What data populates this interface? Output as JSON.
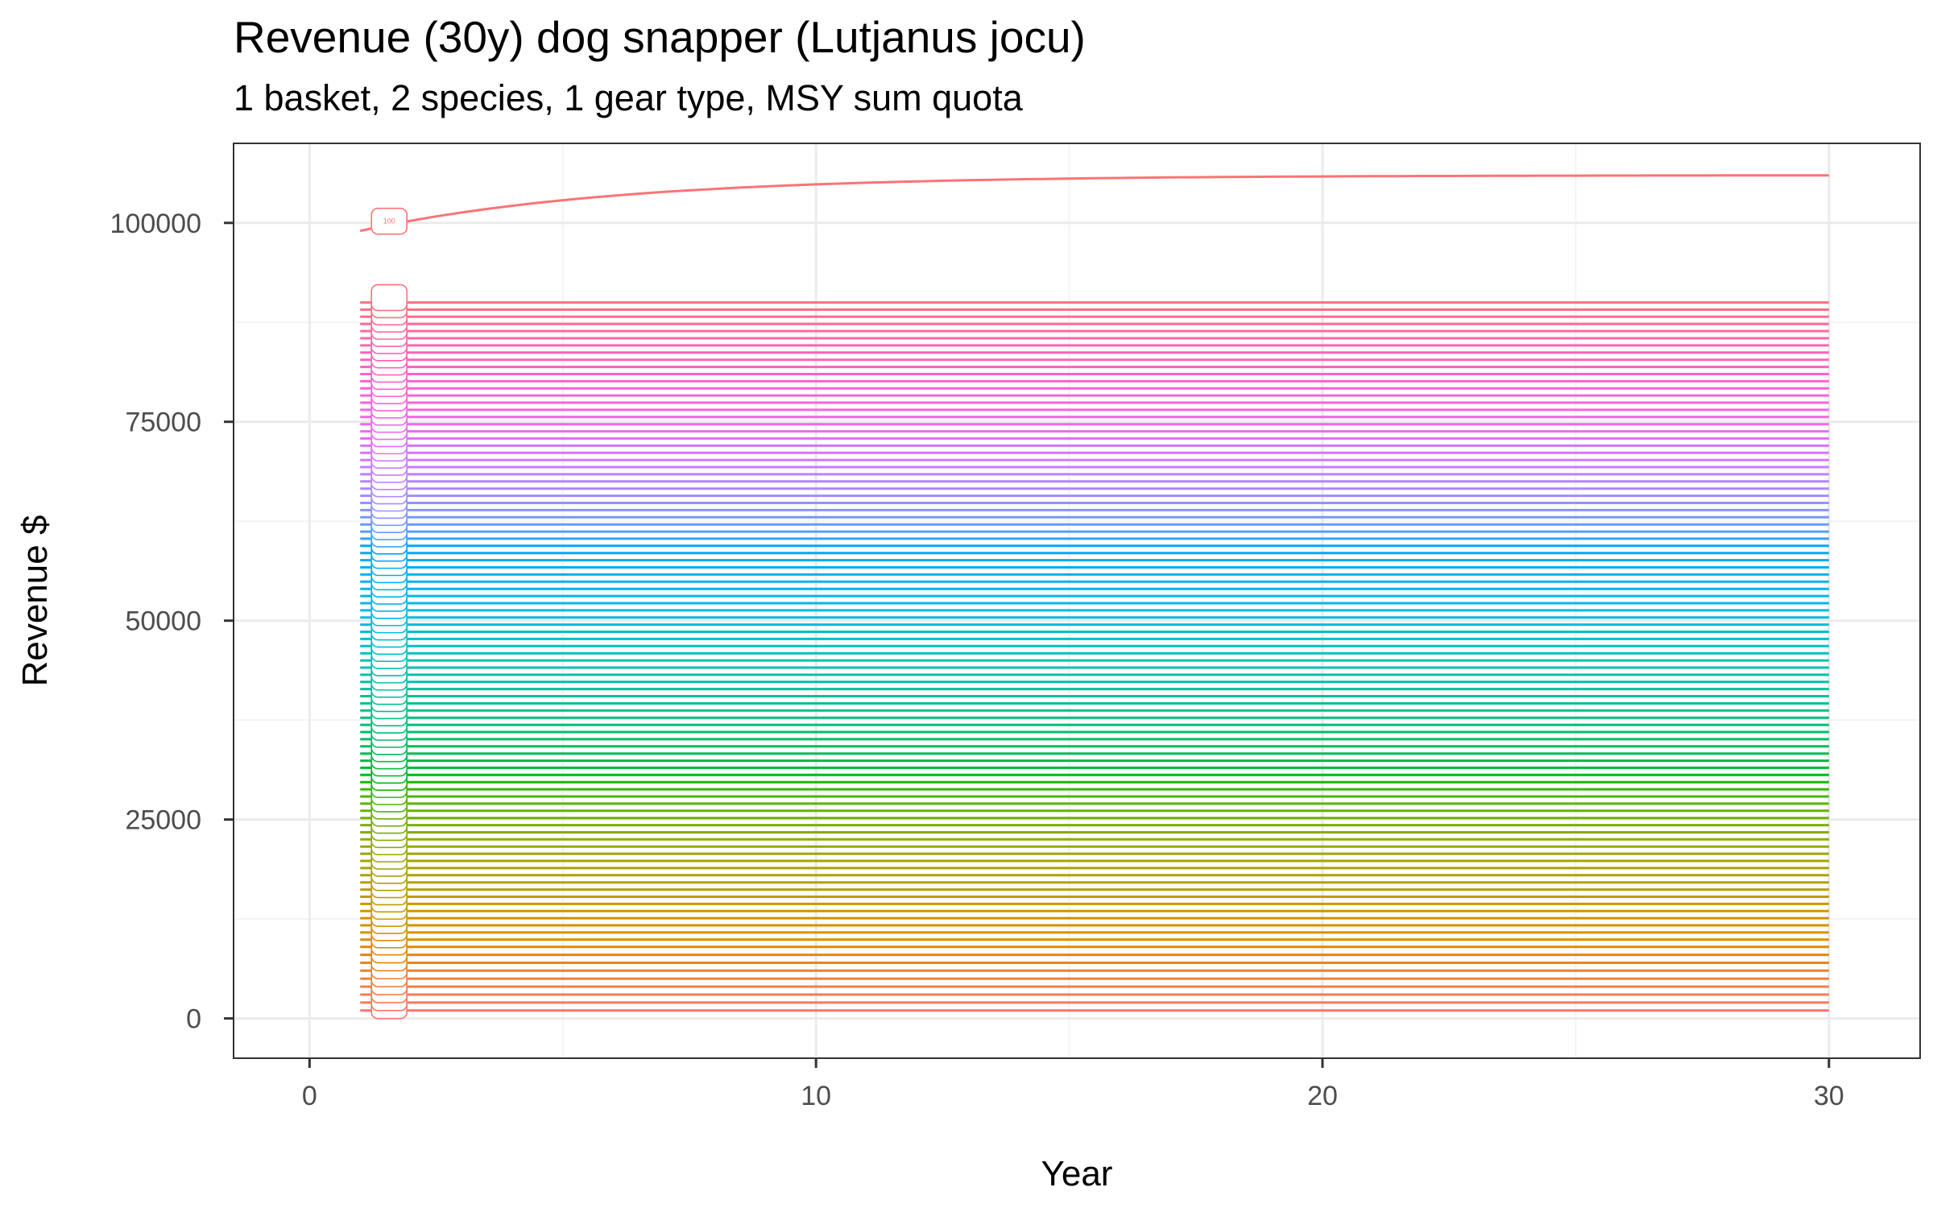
{
  "chart_data": {
    "type": "line",
    "title": "Revenue (30y) dog snapper (Lutjanus jocu)",
    "subtitle": "1 basket, 2 species, 1 gear type, MSY sum quota",
    "xlabel": "Year",
    "ylabel": "Revenue $",
    "xlim": [
      -1.5,
      31.8
    ],
    "ylim": [
      -5000,
      110000
    ],
    "x_ticks": [
      0,
      10,
      20,
      30
    ],
    "y_ticks": [
      0,
      25000,
      50000,
      75000,
      100000
    ],
    "grid": true,
    "legend": "none",
    "series_count": 100,
    "x_start": 1,
    "x_end": 30,
    "start_label": "100",
    "series_rule": "series i = 1..100: value(year) = start_i + growth_i * (1 - exp(-(year - 1) / 5))",
    "series_start_values": [
      1000,
      2000,
      3000,
      4000,
      5000,
      6000,
      7000,
      8000,
      9000,
      9900,
      10800,
      11700,
      12600,
      13500,
      14400,
      15300,
      16200,
      17100,
      18000,
      18900,
      19800,
      20700,
      21600,
      22500,
      23400,
      24300,
      25200,
      26100,
      27000,
      27900,
      28800,
      29700,
      30600,
      31500,
      32400,
      33300,
      34200,
      35100,
      36000,
      36900,
      37800,
      38700,
      39600,
      40500,
      41400,
      42300,
      43200,
      44100,
      45000,
      45900,
      46800,
      47700,
      48600,
      49500,
      50400,
      51300,
      52200,
      53100,
      54000,
      54900,
      55800,
      56700,
      57600,
      58500,
      59400,
      60300,
      61200,
      62100,
      63000,
      63900,
      64800,
      65700,
      66600,
      67500,
      68400,
      69300,
      70200,
      71100,
      72000,
      72900,
      73800,
      74700,
      75600,
      76500,
      77400,
      78300,
      79200,
      80100,
      81000,
      81900,
      82800,
      83700,
      84600,
      85500,
      86400,
      87300,
      88200,
      89100,
      90000,
      99000
    ],
    "series_growth_values": [
      0,
      0,
      0,
      0,
      0,
      0,
      0,
      0,
      0,
      0,
      0,
      0,
      0,
      0,
      0,
      0,
      0,
      0,
      0,
      0,
      0,
      0,
      0,
      0,
      0,
      0,
      0,
      0,
      0,
      0,
      0,
      0,
      0,
      0,
      0,
      0,
      0,
      0,
      0,
      0,
      0,
      0,
      0,
      0,
      0,
      0,
      0,
      0,
      0,
      0,
      0,
      0,
      0,
      0,
      0,
      0,
      0,
      0,
      0,
      0,
      0,
      0,
      0,
      0,
      0,
      0,
      0,
      0,
      0,
      0,
      0,
      0,
      0,
      0,
      0,
      0,
      0,
      0,
      0,
      0,
      0,
      0,
      0,
      0,
      0,
      0,
      0,
      0,
      0,
      0,
      0,
      0,
      0,
      0,
      0,
      0,
      0,
      0,
      0,
      7000
    ],
    "colors": {
      "hue_start": 15,
      "hue_span": 360,
      "chroma": 100,
      "luminance": 65,
      "label_fill": "#ffffff",
      "panel_border": "#333333",
      "grid_major": "#ebebeb",
      "grid_minor": "#f3f3f3",
      "tick_color": "#333333"
    }
  }
}
